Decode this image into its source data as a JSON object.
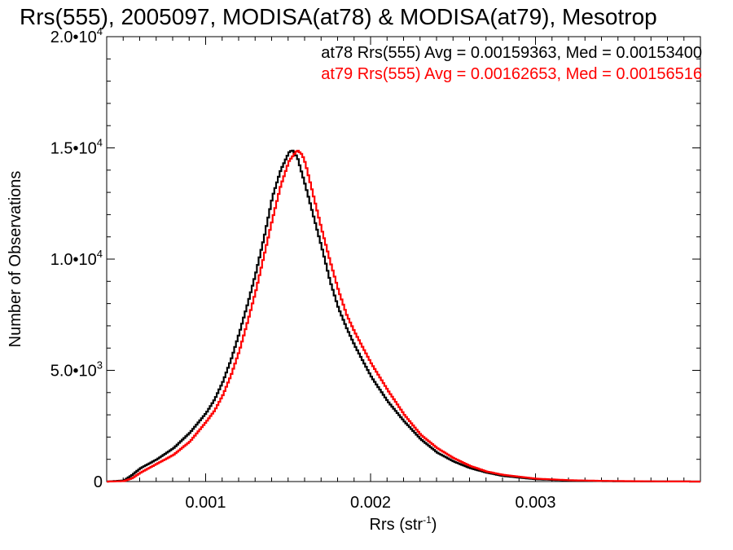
{
  "chart_data": {
    "type": "line",
    "title": "Rrs(555), 2005097, MODISA(at78) & MODISA(at79), Mesotrop",
    "xlabel": "Rrs (str",
    "xlabel_sup": "-1",
    "xlabel_close": ")",
    "ylabel": "Number of Observations",
    "xlim": [
      0.0004,
      0.004
    ],
    "ylim": [
      0,
      20000
    ],
    "grid": false,
    "x_ticks": [
      {
        "value": 0.001,
        "label": "0.001"
      },
      {
        "value": 0.002,
        "label": "0.002"
      },
      {
        "value": 0.003,
        "label": "0.003"
      }
    ],
    "y_ticks": [
      {
        "value": 0,
        "mant": "0",
        "exp": ""
      },
      {
        "value": 5000,
        "mant": "5.0•10",
        "exp": "3"
      },
      {
        "value": 10000,
        "mant": "1.0•10",
        "exp": "4"
      },
      {
        "value": 15000,
        "mant": "1.5•10",
        "exp": "4"
      },
      {
        "value": 20000,
        "mant": "2.0•10",
        "exp": "4"
      }
    ],
    "series": [
      {
        "name": "at78",
        "color": "#000000",
        "x": [
          0.0004,
          0.0005,
          0.00055,
          0.0006,
          0.00065,
          0.0007,
          0.0008,
          0.0009,
          0.001,
          0.00105,
          0.0011,
          0.00115,
          0.0012,
          0.00125,
          0.0013,
          0.00135,
          0.0014,
          0.00145,
          0.0015,
          0.00152,
          0.00155,
          0.0016,
          0.00165,
          0.0017,
          0.00175,
          0.0018,
          0.00185,
          0.0019,
          0.002,
          0.0021,
          0.0022,
          0.0023,
          0.0024,
          0.0025,
          0.0026,
          0.0027,
          0.0028,
          0.003,
          0.0032,
          0.0034,
          0.0036,
          0.0038,
          0.004
        ],
        "y": [
          0,
          50,
          300,
          600,
          800,
          1000,
          1500,
          2200,
          3100,
          3700,
          4500,
          5500,
          6700,
          8000,
          9400,
          11000,
          12800,
          14000,
          14800,
          14900,
          14600,
          13300,
          11900,
          10500,
          9000,
          7800,
          6900,
          6100,
          4700,
          3600,
          2700,
          1900,
          1300,
          900,
          600,
          400,
          250,
          100,
          50,
          20,
          10,
          5,
          0
        ]
      },
      {
        "name": "at79",
        "color": "#ff0000",
        "x": [
          0.0004,
          0.0005,
          0.00055,
          0.0006,
          0.00065,
          0.0007,
          0.0008,
          0.0009,
          0.001,
          0.00105,
          0.0011,
          0.00115,
          0.0012,
          0.00125,
          0.0013,
          0.00135,
          0.0014,
          0.00145,
          0.0015,
          0.00155,
          0.00158,
          0.0016,
          0.00165,
          0.0017,
          0.00175,
          0.0018,
          0.00185,
          0.0019,
          0.002,
          0.0021,
          0.0022,
          0.0023,
          0.0024,
          0.0025,
          0.0026,
          0.0027,
          0.0028,
          0.003,
          0.0032,
          0.0034,
          0.0036,
          0.0038,
          0.004
        ],
        "y": [
          0,
          20,
          150,
          400,
          600,
          800,
          1200,
          1800,
          2700,
          3200,
          3900,
          4800,
          5900,
          7200,
          8600,
          10200,
          11800,
          13300,
          14400,
          14900,
          14700,
          14300,
          12800,
          11300,
          9900,
          8600,
          7500,
          6700,
          5300,
          4100,
          3000,
          2100,
          1500,
          1050,
          700,
          450,
          300,
          130,
          60,
          30,
          15,
          5,
          0
        ]
      }
    ],
    "legend": [
      {
        "text": "at78 Rrs(555) Avg = 0.00159363, Med = 0.00153400",
        "color": "#000000"
      },
      {
        "text": "at79 Rrs(555) Avg = 0.00162653, Med = 0.00156516",
        "color": "#ff0000"
      }
    ],
    "legend_position": "top-right"
  }
}
